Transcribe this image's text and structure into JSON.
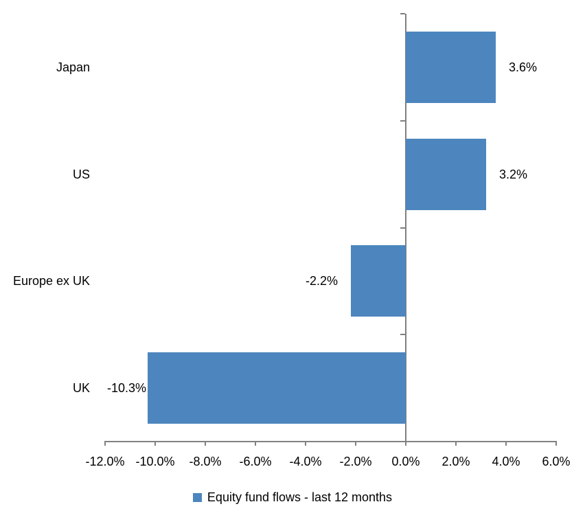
{
  "chart_data": {
    "type": "bar",
    "orientation": "horizontal",
    "title": "",
    "categories": [
      "Japan",
      "US",
      "Europe ex UK",
      "UK"
    ],
    "values": [
      3.6,
      3.2,
      -2.2,
      -10.3
    ],
    "value_labels": [
      "3.6%",
      "3.2%",
      "-2.2%",
      "-10.3%"
    ],
    "series_name": "Equity fund flows - last 12 months",
    "xlim": [
      -12,
      6
    ],
    "x_tick_interval": 2,
    "x_tick_labels": [
      "-12.0%",
      "-10.0%",
      "-8.0%",
      "-6.0%",
      "-4.0%",
      "-2.0%",
      "0.0%",
      "2.0%",
      "4.0%",
      "6.0%"
    ],
    "grid": false,
    "legend_position": "bottom",
    "bar_color": "#4D86BE",
    "axis_color": "#808080",
    "text_color": "#000000"
  }
}
